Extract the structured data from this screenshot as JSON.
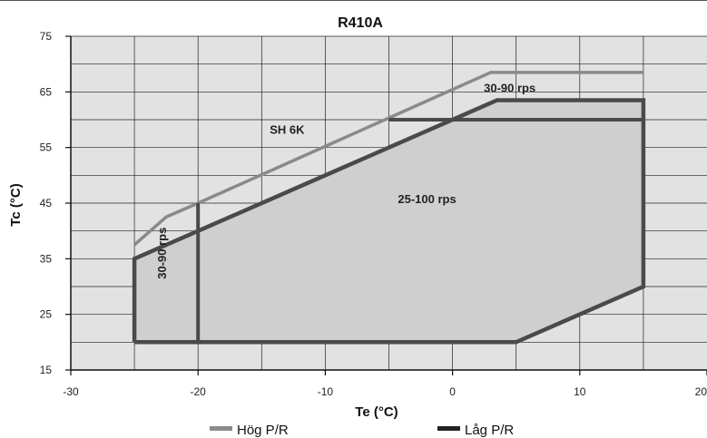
{
  "chart_data": {
    "type": "line",
    "title": "R410A",
    "xlabel": "Te (°C)",
    "ylabel": "Tc (°C)",
    "xlim": [
      -30,
      20
    ],
    "ylim": [
      15,
      75
    ],
    "xticks": [
      -30,
      -20,
      -10,
      0,
      10,
      20
    ],
    "yticks": [
      15,
      25,
      35,
      45,
      55,
      65,
      75
    ],
    "grid": true,
    "legend_position": "bottom",
    "series": [
      {
        "name": "Hög P/R",
        "color": "#8a8a8a",
        "points": [
          [
            -25,
            37.5
          ],
          [
            -22.5,
            42.5
          ],
          [
            -20,
            45
          ],
          [
            3,
            68.5
          ],
          [
            15,
            68.5
          ]
        ]
      },
      {
        "name": "Låg P/R",
        "color": "#4a4a4a",
        "points": [
          [
            -25,
            20
          ],
          [
            -25,
            35
          ],
          [
            -20,
            40
          ],
          [
            3.5,
            63.5
          ],
          [
            15,
            63.5
          ],
          [
            15,
            30
          ],
          [
            5,
            20
          ],
          [
            -25,
            20
          ]
        ]
      }
    ],
    "region_lines": [
      {
        "points": [
          [
            -20,
            20
          ],
          [
            -20,
            45
          ]
        ]
      },
      {
        "points": [
          [
            -5,
            60
          ],
          [
            15,
            60
          ]
        ]
      }
    ],
    "annotations": [
      {
        "text": "30-90 rps",
        "x": 4.5,
        "y": 65
      },
      {
        "text": "SH 6K",
        "x": -13,
        "y": 57.5
      },
      {
        "text": "25-100 rps",
        "x": -2,
        "y": 45
      },
      {
        "text": "30-90 rps",
        "x": -22.5,
        "y": 36,
        "orientation": "vertical"
      }
    ],
    "shaded_region": [
      [
        -25,
        20
      ],
      [
        -25,
        35
      ],
      [
        -20,
        40
      ],
      [
        3.5,
        63.5
      ],
      [
        15,
        63.5
      ],
      [
        15,
        30
      ],
      [
        5,
        20
      ]
    ]
  }
}
